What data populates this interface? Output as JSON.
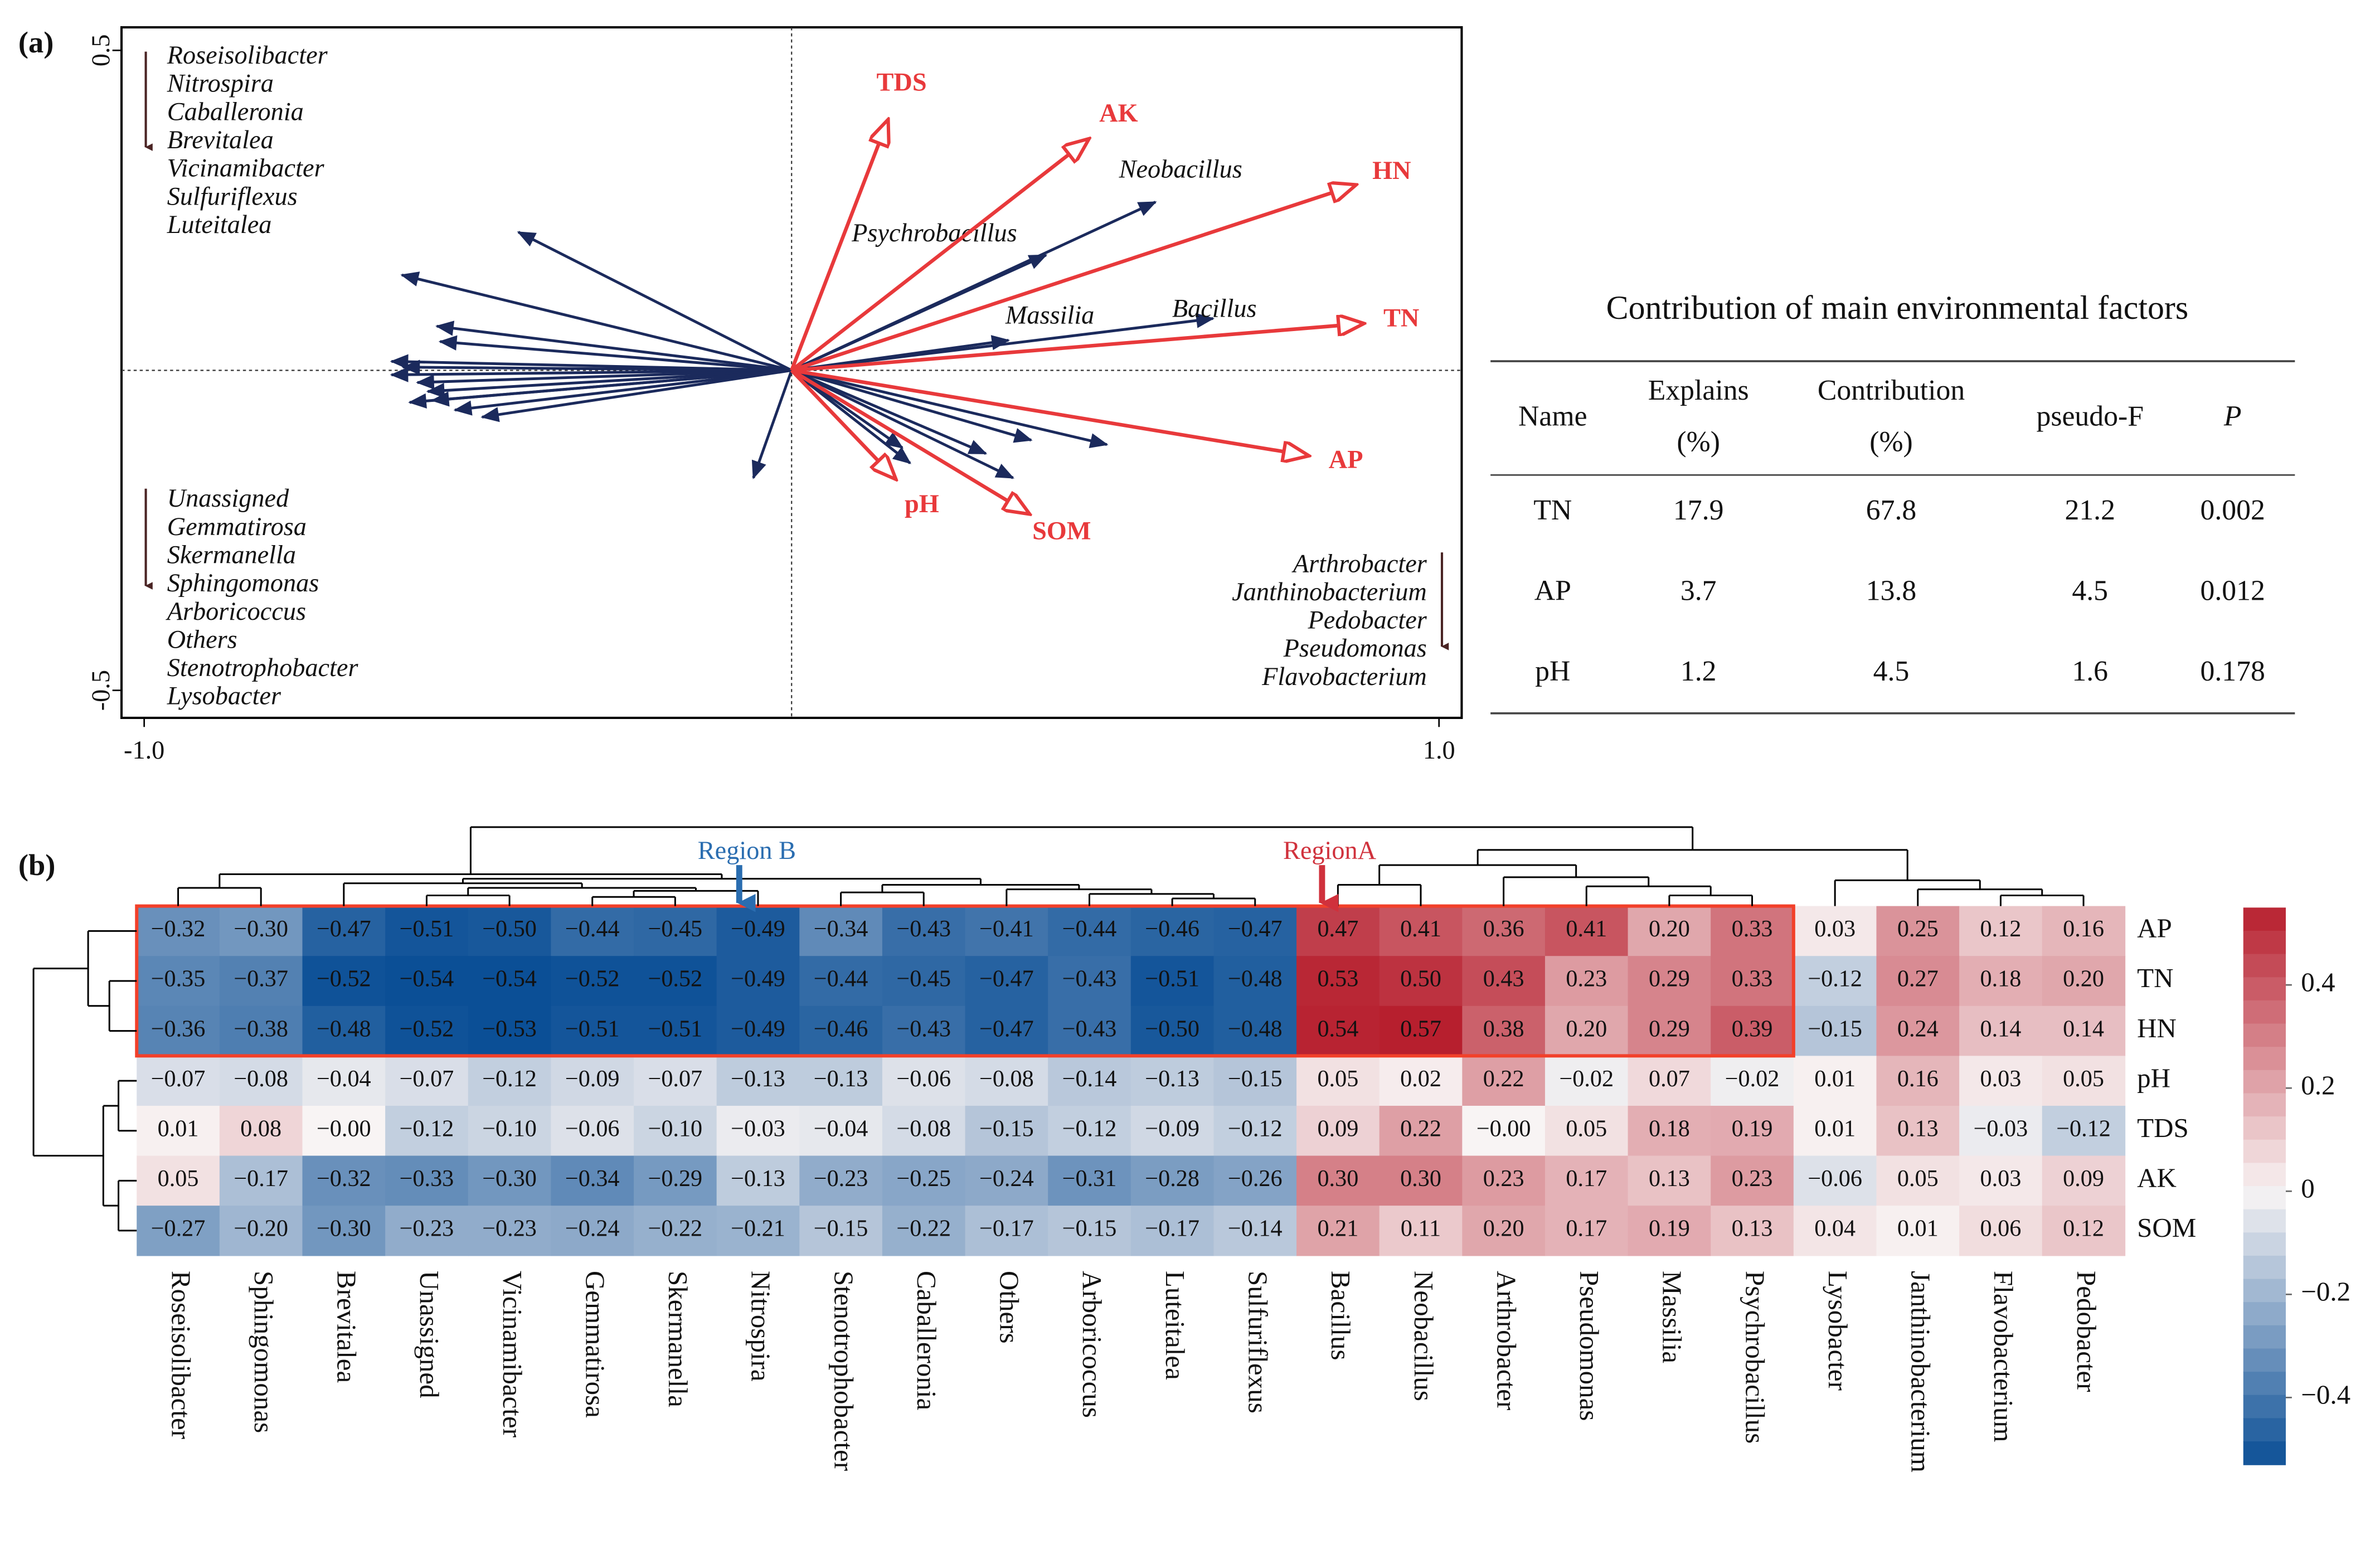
{
  "panel_labels": [
    "(a)",
    "(b)"
  ],
  "chart_data": [
    {
      "type": "biplot",
      "xlim": [
        -1.035,
        1.035
      ],
      "ylim": [
        -0.543,
        0.536
      ],
      "xticks": [
        {
          "value": -1,
          "label": "-1.0"
        },
        {
          "value": 1,
          "label": "1.0"
        }
      ],
      "yticks": [
        {
          "value": -0.5,
          "label": "-0.5"
        },
        {
          "value": 0.5,
          "label": "0.5"
        }
      ],
      "env": {
        "color": "#e8393b",
        "labels": [
          "TDS",
          "AK",
          "HN",
          "TN",
          "AP",
          "pH",
          "SOM"
        ],
        "x": [
          0.148,
          0.457,
          0.869,
          0.881,
          0.796,
          0.159,
          0.365
        ],
        "y": [
          0.389,
          0.36,
          0.289,
          0.073,
          -0.133,
          -0.168,
          -0.223
        ]
      },
      "taxa": {
        "color": "#1b2a5c",
        "labels": [
          "Neobacillus",
          "Psychrobacillus",
          "Massilia",
          "Bacillus",
          null,
          null,
          null,
          null,
          null,
          null,
          null,
          null,
          null,
          null,
          null,
          null,
          null,
          null,
          null,
          null,
          null,
          null,
          null,
          null
        ],
        "x": [
          0.562,
          0.393,
          0.335,
          0.651,
          0.171,
          0.183,
          0.342,
          0.37,
          0.487,
          -0.059,
          -0.422,
          -0.602,
          -0.548,
          -0.543,
          -0.618,
          -0.618,
          -0.578,
          -0.562,
          -0.555,
          -0.52,
          -0.478,
          -0.6,
          -0.59,
          0.3
        ],
        "y": [
          0.263,
          0.18,
          0.047,
          0.081,
          -0.121,
          -0.145,
          -0.168,
          -0.109,
          -0.116,
          -0.168,
          0.216,
          0.149,
          0.069,
          0.045,
          0.014,
          -0.007,
          -0.019,
          -0.033,
          -0.047,
          -0.062,
          -0.073,
          0.005,
          -0.05,
          -0.13
        ]
      },
      "annotations": {
        "upper_left": [
          "Roseisolibacter",
          "Nitrospira",
          "Caballeronia",
          "Brevitalea",
          "Vicinamibacter",
          "Sulfuriflexus",
          "Luteitalea"
        ],
        "lower_left": [
          "Unassigned",
          "Gemmatirosa",
          "Skermanella",
          "Sphingomonas",
          "Arboricoccus",
          "Others",
          "Stenotrophobacter",
          "Lysobacter"
        ],
        "lower_right": [
          "Arthrobacter",
          "Janthinobacterium",
          "Pedobacter",
          "Pseudomonas",
          "Flavobacterium"
        ]
      }
    },
    {
      "type": "heatmap",
      "rows": [
        "AP",
        "TN",
        "HN",
        "pH",
        "TDS",
        "AK",
        "SOM"
      ],
      "categories": [
        "Roseisolibacter",
        "Sphingomonas",
        "Brevitalea",
        "Unassigned",
        "Vicinamibacter",
        "Gemmatirosa",
        "Skermanella",
        "Nitrospira",
        "Stenotrophobacter",
        "Caballeronia",
        "Others",
        "Arboricoccus",
        "Luteitalea",
        "Sulfuriflexus",
        "Bacillus",
        "Neobacillus",
        "Arthrobacter",
        "Pseudomonas",
        "Massilia",
        "Psychrobacillus",
        "Lysobacter",
        "Janthinobacterium",
        "Flavobacterium",
        "Pedobacter"
      ],
      "values": [
        [
          -0.32,
          -0.3,
          -0.47,
          -0.51,
          -0.5,
          -0.44,
          -0.45,
          -0.49,
          -0.34,
          -0.43,
          -0.41,
          -0.44,
          -0.46,
          -0.47,
          0.47,
          0.41,
          0.36,
          0.41,
          0.2,
          0.33,
          0.03,
          0.25,
          0.12,
          0.16
        ],
        [
          -0.35,
          -0.37,
          -0.52,
          -0.54,
          -0.54,
          -0.52,
          -0.52,
          -0.49,
          -0.44,
          -0.45,
          -0.47,
          -0.43,
          -0.51,
          -0.48,
          0.53,
          0.5,
          0.43,
          0.23,
          0.29,
          0.33,
          -0.12,
          0.27,
          0.18,
          0.2
        ],
        [
          -0.36,
          -0.38,
          -0.48,
          -0.52,
          -0.53,
          -0.51,
          -0.51,
          -0.49,
          -0.46,
          -0.43,
          -0.47,
          -0.43,
          -0.5,
          -0.48,
          0.54,
          0.57,
          0.38,
          0.2,
          0.29,
          0.39,
          -0.15,
          0.24,
          0.14,
          0.14
        ],
        [
          -0.07,
          -0.08,
          -0.04,
          -0.07,
          -0.12,
          -0.09,
          -0.07,
          -0.13,
          -0.13,
          -0.06,
          -0.08,
          -0.14,
          -0.13,
          -0.15,
          0.05,
          0.02,
          0.22,
          -0.02,
          0.07,
          -0.02,
          0.01,
          0.16,
          0.03,
          0.05
        ],
        [
          0.01,
          0.08,
          0,
          -0.12,
          -0.1,
          -0.06,
          -0.1,
          -0.03,
          -0.04,
          -0.08,
          -0.15,
          -0.12,
          -0.09,
          -0.12,
          0.09,
          0.22,
          0,
          0.05,
          0.18,
          0.19,
          0.01,
          0.13,
          -0.03,
          -0.12
        ],
        [
          0.05,
          -0.17,
          -0.32,
          -0.33,
          -0.3,
          -0.34,
          -0.29,
          -0.13,
          -0.23,
          -0.25,
          -0.24,
          -0.31,
          -0.28,
          -0.26,
          0.3,
          0.3,
          0.23,
          0.17,
          0.13,
          0.23,
          -0.06,
          0.05,
          0.03,
          0.09
        ],
        [
          -0.27,
          -0.2,
          -0.3,
          -0.23,
          -0.23,
          -0.24,
          -0.22,
          -0.21,
          -0.15,
          -0.22,
          -0.17,
          -0.15,
          -0.17,
          -0.14,
          0.21,
          0.11,
          0.2,
          0.17,
          0.19,
          0.13,
          0.04,
          0.01,
          0.06,
          0.12
        ]
      ],
      "value_labels": [
        [
          "−0.32",
          "−0.30",
          "−0.47",
          "−0.51",
          "−0.50",
          "−0.44",
          "−0.45",
          "−0.49",
          "−0.34",
          "−0.43",
          "−0.41",
          "−0.44",
          "−0.46",
          "−0.47",
          "0.47",
          "0.41",
          "0.36",
          "0.41",
          "0.20",
          "0.33",
          "0.03",
          "0.25",
          "0.12",
          "0.16"
        ],
        [
          "−0.35",
          "−0.37",
          "−0.52",
          "−0.54",
          "−0.54",
          "−0.52",
          "−0.52",
          "−0.49",
          "−0.44",
          "−0.45",
          "−0.47",
          "−0.43",
          "−0.51",
          "−0.48",
          "0.53",
          "0.50",
          "0.43",
          "0.23",
          "0.29",
          "0.33",
          "−0.12",
          "0.27",
          "0.18",
          "0.20"
        ],
        [
          "−0.36",
          "−0.38",
          "−0.48",
          "−0.52",
          "−0.53",
          "−0.51",
          "−0.51",
          "−0.49",
          "−0.46",
          "−0.43",
          "−0.47",
          "−0.43",
          "−0.50",
          "−0.48",
          "0.54",
          "0.57",
          "0.38",
          "0.20",
          "0.29",
          "0.39",
          "−0.15",
          "0.24",
          "0.14",
          "0.14"
        ],
        [
          "−0.07",
          "−0.08",
          "−0.04",
          "−0.07",
          "−0.12",
          "−0.09",
          "−0.07",
          "−0.13",
          "−0.13",
          "−0.06",
          "−0.08",
          "−0.14",
          "−0.13",
          "−0.15",
          "0.05",
          "0.02",
          "0.22",
          "−0.02",
          "0.07",
          "−0.02",
          "0.01",
          "0.16",
          "0.03",
          "0.05"
        ],
        [
          "0.01",
          "0.08",
          "−0.00",
          "−0.12",
          "−0.10",
          "−0.06",
          "−0.10",
          "−0.03",
          "−0.04",
          "−0.08",
          "−0.15",
          "−0.12",
          "−0.09",
          "−0.12",
          "0.09",
          "0.22",
          "−0.00",
          "0.05",
          "0.18",
          "0.19",
          "0.01",
          "0.13",
          "−0.03",
          "−0.12"
        ],
        [
          "0.05",
          "−0.17",
          "−0.32",
          "−0.33",
          "−0.30",
          "−0.34",
          "−0.29",
          "−0.13",
          "−0.23",
          "−0.25",
          "−0.24",
          "−0.31",
          "−0.28",
          "−0.26",
          "0.30",
          "0.30",
          "0.23",
          "0.17",
          "0.13",
          "0.23",
          "−0.06",
          "0.05",
          "0.03",
          "0.09"
        ],
        [
          "−0.27",
          "−0.20",
          "−0.30",
          "−0.23",
          "−0.23",
          "−0.24",
          "−0.22",
          "−0.21",
          "−0.15",
          "−0.22",
          "−0.17",
          "−0.15",
          "−0.17",
          "−0.14",
          "0.21",
          "0.11",
          "0.20",
          "0.17",
          "0.19",
          "0.13",
          "0.04",
          "0.01",
          "0.06",
          "0.12"
        ]
      ],
      "colormap": [
        "#0b4f96",
        "#f8f4f4",
        "#b71f2e"
      ],
      "clim": [
        -0.53,
        0.55
      ],
      "cticks": [
        0.4,
        0.2,
        0,
        {
          "value": -0.2,
          "label": "−0.2"
        },
        {
          "value": -0.4,
          "label": "−0.4"
        }
      ],
      "region_labels": [
        "Region B",
        "RegionA"
      ]
    }
  ],
  "table": {
    "title": "Contribution of main environmental factors",
    "header": [
      [
        "Name"
      ],
      [
        "Explains",
        "(%)"
      ],
      [
        "Contribution",
        "(%)"
      ],
      [
        "pseudo-F"
      ],
      [
        "P"
      ]
    ],
    "rows": [
      [
        "TN",
        17.9,
        67.8,
        21.2,
        0.002
      ],
      [
        "AP",
        3.7,
        13.8,
        4.5,
        0.012
      ],
      [
        "pH",
        1.2,
        4.5,
        1.6,
        0.178
      ]
    ]
  }
}
